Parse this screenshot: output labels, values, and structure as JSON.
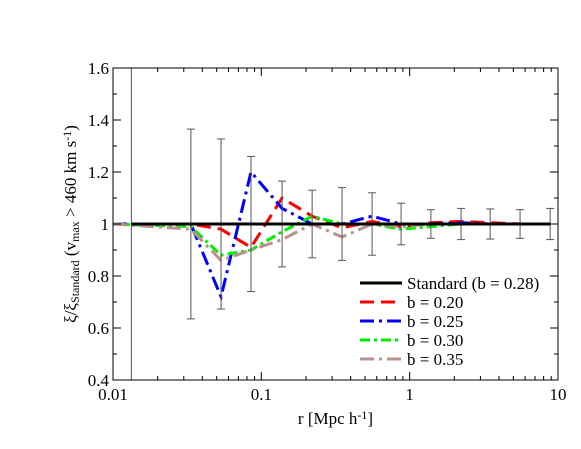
{
  "chart_data": {
    "type": "line",
    "xlabel": [
      {
        "text": "r [Mpc h"
      },
      {
        "text": "-1",
        "sup": true
      },
      {
        "text": "]"
      }
    ],
    "ylabel": [
      {
        "text": "ξ/ξ"
      },
      {
        "text": "Standard",
        "sub": true
      },
      {
        "text": " (v"
      },
      {
        "text": "max",
        "sub": true
      },
      {
        "text": " > 460 km s"
      },
      {
        "text": "-1",
        "sup": true
      },
      {
        "text": ")"
      }
    ],
    "xscale": "log",
    "xlim": [
      0.01,
      10
    ],
    "xticks": [
      0.01,
      0.1,
      1,
      10
    ],
    "ylim": [
      0.4,
      1.6
    ],
    "yticks": [
      0.4,
      0.6,
      0.8,
      1,
      1.2,
      1.4,
      1.6
    ],
    "legend": "lower right",
    "series": [
      {
        "name": "Standard (b = 0.28)",
        "color": "#000000",
        "dash": "none",
        "width": 3,
        "x": [
          0.0133,
          0.0335,
          0.0535,
          0.0852,
          0.138,
          0.22,
          0.35,
          0.558,
          0.875,
          1.39,
          2.22,
          3.49,
          5.55,
          8.85
        ],
        "values": [
          1,
          1,
          1,
          1,
          1,
          1,
          1,
          1,
          1,
          1,
          1,
          1,
          1,
          1
        ],
        "errors": [
          0.8,
          0.365,
          0.327,
          0.26,
          0.165,
          0.13,
          0.14,
          0.12,
          0.08,
          0.055,
          0.06,
          0.058,
          0.055,
          0.06
        ]
      },
      {
        "name": "b = 0.20",
        "color": "#ff0000",
        "dash": "14,7",
        "width": 3,
        "x": [
          0.01,
          0.0335,
          0.0535,
          0.0852,
          0.138,
          0.22,
          0.35,
          0.558,
          0.875,
          1.39,
          2.22,
          3.49,
          5.55,
          8.85
        ],
        "values": [
          1,
          1,
          0.98,
          0.91,
          1.1,
          1.03,
          0.985,
          1.01,
          0.99,
          1.005,
          1.01,
          1.005,
          1,
          1
        ]
      },
      {
        "name": "b = 0.25",
        "color": "#0000ff",
        "dash": "14,5,3,5",
        "width": 3,
        "x": [
          0.01,
          0.0335,
          0.0535,
          0.0852,
          0.138,
          0.22,
          0.35,
          0.558,
          0.875,
          1.39,
          2.22,
          3.49,
          5.55,
          8.85
        ],
        "values": [
          1,
          1,
          0.72,
          1.2,
          1.06,
          1,
          1,
          1.03,
          1,
          1,
          1.005,
          1,
          1,
          1
        ]
      },
      {
        "name": "b = 0.30",
        "color": "#00ee00",
        "dash": "10,4,3,4",
        "width": 3,
        "x": [
          0.01,
          0.0335,
          0.0535,
          0.0852,
          0.138,
          0.22,
          0.35,
          0.558,
          0.875,
          1.39,
          2.22,
          3.49,
          5.55,
          8.85
        ],
        "values": [
          1,
          0.99,
          0.88,
          0.9,
          0.97,
          1.03,
          1,
          1,
          0.98,
          0.99,
          1,
          1,
          1,
          1
        ]
      },
      {
        "name": "b = 0.35",
        "color": "#bc8f8f",
        "dash": "14,5,3,5",
        "width": 3,
        "x": [
          0.01,
          0.0335,
          0.0535,
          0.0852,
          0.138,
          0.22,
          0.35,
          0.558,
          0.875,
          1.39,
          2.22,
          3.49,
          5.55,
          8.85
        ],
        "values": [
          1,
          0.98,
          0.86,
          0.9,
          0.94,
          1,
          0.95,
          1,
          0.99,
          1,
          1,
          1,
          1,
          1
        ]
      }
    ]
  }
}
